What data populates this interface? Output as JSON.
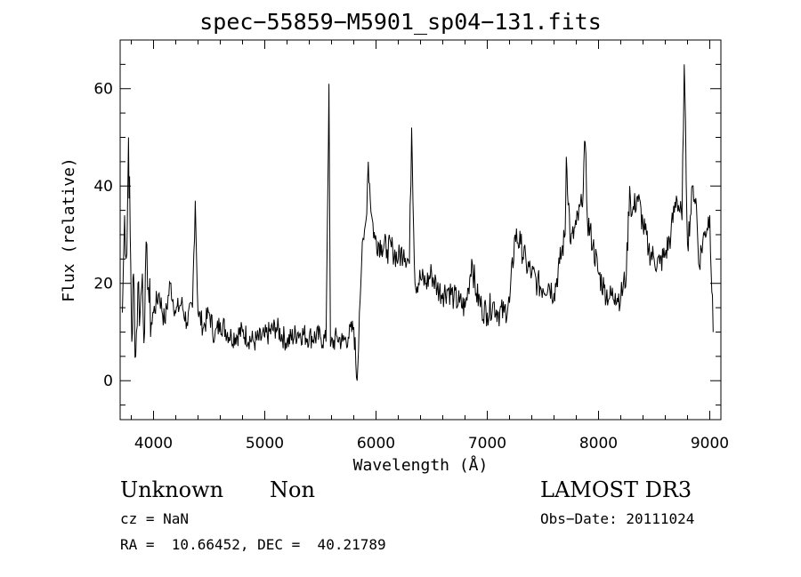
{
  "title": "spec−55859−M5901_sp04−131.fits",
  "info": {
    "object_class": "Unknown",
    "object_subclass": "Non",
    "survey": "LAMOST DR3",
    "cz": "cz = NaN",
    "obs_date": "Obs−Date: 20111024",
    "ra_dec": "RA =  10.66452, DEC =  40.21789"
  },
  "chart_data": {
    "type": "line",
    "title": "spec−55859−M5901_sp04−131.fits",
    "xlabel": "Wavelength (Å)",
    "ylabel": "Flux (relative)",
    "xlim": [
      3700,
      9100
    ],
    "ylim": [
      -8,
      70
    ],
    "xticks": [
      4000,
      5000,
      6000,
      7000,
      8000,
      9000
    ],
    "yticks": [
      0,
      20,
      40,
      60
    ],
    "grid": false,
    "series": [
      {
        "x": [
          3720,
          3740,
          3760,
          3775,
          3790,
          3805,
          3820,
          3840,
          3860,
          3880,
          3900,
          3920,
          3940,
          3960,
          3980,
          4000,
          4050,
          4100,
          4150,
          4200,
          4250,
          4300,
          4350,
          4375,
          4400,
          4450,
          4500,
          4550,
          4600,
          4700,
          4800,
          4900,
          5000,
          5100,
          5200,
          5300,
          5400,
          5500,
          5550,
          5577,
          5590,
          5650,
          5700,
          5750,
          5800,
          5830,
          5850,
          5870,
          5890,
          5910,
          5930,
          5960,
          5990,
          6050,
          6100,
          6150,
          6200,
          6250,
          6300,
          6320,
          6350,
          6400,
          6450,
          6500,
          6550,
          6600,
          6650,
          6700,
          6750,
          6800,
          6830,
          6860,
          6900,
          6950,
          7000,
          7050,
          7100,
          7150,
          7200,
          7250,
          7300,
          7350,
          7400,
          7450,
          7500,
          7550,
          7600,
          7650,
          7700,
          7710,
          7750,
          7800,
          7850,
          7880,
          7900,
          7950,
          8000,
          8050,
          8100,
          8150,
          8200,
          8250,
          8280,
          8300,
          8350,
          8400,
          8450,
          8500,
          8550,
          8600,
          8650,
          8700,
          8750,
          8770,
          8800,
          8850,
          8880,
          8900,
          8950,
          9000,
          9030
        ],
        "y": [
          14,
          34,
          26,
          50,
          30,
          8,
          22,
          5,
          20,
          14,
          22,
          10,
          28,
          16,
          12,
          14,
          18,
          12,
          20,
          14,
          16,
          12,
          15,
          37,
          14,
          11,
          14,
          9,
          12,
          9,
          10,
          8,
          9,
          11,
          8,
          10,
          9,
          9,
          8,
          61,
          7,
          9,
          8,
          9,
          11,
          0,
          14,
          24,
          29,
          33,
          45,
          34,
          29,
          28,
          27,
          27,
          25,
          27,
          24,
          52,
          20,
          21,
          20,
          22,
          19,
          18,
          19,
          17,
          16,
          15,
          19,
          25,
          18,
          15,
          14,
          16,
          14,
          14,
          16,
          30,
          28,
          24,
          22,
          20,
          19,
          20,
          18,
          24,
          30,
          46,
          28,
          32,
          36,
          49,
          33,
          28,
          22,
          19,
          17,
          18,
          17,
          22,
          40,
          34,
          38,
          32,
          27,
          25,
          24,
          26,
          30,
          38,
          33,
          65,
          28,
          40,
          36,
          24,
          30,
          34,
          10
        ]
      }
    ]
  }
}
